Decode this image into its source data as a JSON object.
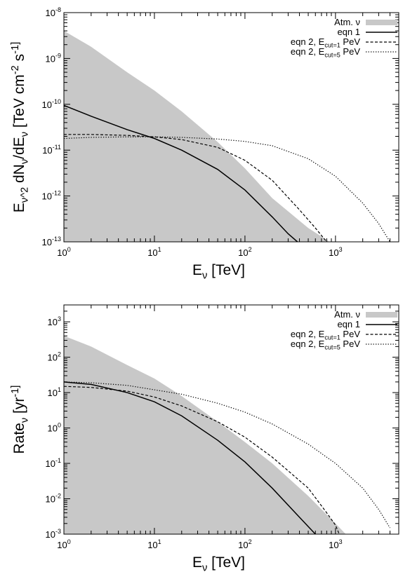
{
  "chart_data": [
    {
      "type": "line",
      "xscale": "log",
      "yscale": "log",
      "xlim": [
        1,
        5000
      ],
      "ylim": [
        1e-13,
        1e-08
      ],
      "xlabel": "E_ν [TeV]",
      "ylabel": "E_ν^2 dN_ν/dE_ν [TeV cm^-2 s^-1]",
      "x_ticks": [
        1,
        10,
        100,
        1000
      ],
      "x_tick_labels": [
        [
          "10",
          "0"
        ],
        [
          "10",
          "1"
        ],
        [
          "10",
          "2"
        ],
        [
          "10",
          "3"
        ]
      ],
      "y_ticks": [
        1e-13,
        1e-12,
        1e-11,
        1e-10,
        1e-09,
        1e-08
      ],
      "y_tick_labels": [
        [
          "10",
          "-13"
        ],
        [
          "10",
          "-12"
        ],
        [
          "10",
          "-11"
        ],
        [
          "10",
          "-10"
        ],
        [
          "10",
          "-9"
        ],
        [
          "10",
          "-8"
        ]
      ],
      "legend_position": "top-right",
      "series": [
        {
          "name": "Atm. ν",
          "style": "filled",
          "color": "#c8c8c8",
          "x": [
            1,
            2,
            5,
            10,
            20,
            50,
            100,
            200,
            500,
            800,
            850
          ],
          "y": [
            4e-09,
            1.8e-09,
            5e-10,
            2e-10,
            7e-11,
            1.5e-11,
            4e-12,
            9e-13,
            2e-13,
            1.1e-13,
            1e-13
          ]
        },
        {
          "name": "eqn 1",
          "style": "solid",
          "x": [
            1,
            2,
            5,
            10,
            20,
            50,
            100,
            200,
            300,
            380
          ],
          "y": [
            9.5e-11,
            5.5e-11,
            2.8e-11,
            1.8e-11,
            1e-11,
            3.8e-12,
            1.35e-12,
            3.5e-13,
            1.5e-13,
            1e-13
          ]
        },
        {
          "name": "eqn 2, E_cut=1 PeV",
          "style": "dashed",
          "x": [
            1,
            2,
            5,
            10,
            20,
            50,
            100,
            200,
            400,
            600,
            800
          ],
          "y": [
            2.2e-11,
            2.2e-11,
            2.1e-11,
            1.95e-11,
            1.7e-11,
            1.15e-11,
            6e-12,
            2.2e-12,
            5e-13,
            2e-13,
            1e-13
          ]
        },
        {
          "name": "eqn 2, E_cut=5 PeV",
          "style": "dotted",
          "x": [
            1,
            2,
            5,
            10,
            20,
            50,
            100,
            200,
            500,
            1000,
            2000,
            3000,
            4000
          ],
          "y": [
            1.8e-11,
            1.9e-11,
            1.95e-11,
            1.95e-11,
            1.9e-11,
            1.75e-11,
            1.55e-11,
            1.25e-11,
            6.5e-12,
            2.7e-12,
            7e-13,
            2.5e-13,
            1e-13
          ]
        }
      ]
    },
    {
      "type": "line",
      "xscale": "log",
      "yscale": "log",
      "xlim": [
        1,
        5000
      ],
      "ylim": [
        0.001,
        3000
      ],
      "xlabel": "E_ν [TeV]",
      "ylabel": "Rate_ν [yr^-1]",
      "x_ticks": [
        1,
        10,
        100,
        1000
      ],
      "x_tick_labels": [
        [
          "10",
          "0"
        ],
        [
          "10",
          "1"
        ],
        [
          "10",
          "2"
        ],
        [
          "10",
          "3"
        ]
      ],
      "y_ticks": [
        0.001,
        0.01,
        0.1,
        1,
        10,
        100,
        1000
      ],
      "y_tick_labels": [
        [
          "10",
          "-3"
        ],
        [
          "10",
          "-2"
        ],
        [
          "10",
          "-1"
        ],
        [
          "10",
          "0"
        ],
        [
          "10",
          "1"
        ],
        [
          "10",
          "2"
        ],
        [
          "10",
          "3"
        ]
      ],
      "legend_position": "top-right",
      "series": [
        {
          "name": "Atm. ν",
          "style": "filled",
          "color": "#c8c8c8",
          "x": [
            1,
            2,
            5,
            10,
            20,
            50,
            100,
            200,
            500,
            1000,
            1300
          ],
          "y": [
            400,
            200,
            60,
            25,
            8,
            1.5,
            0.4,
            0.1,
            0.012,
            0.002,
            0.001
          ]
        },
        {
          "name": "eqn 1",
          "style": "solid",
          "x": [
            1,
            2,
            5,
            10,
            20,
            50,
            100,
            200,
            400,
            600
          ],
          "y": [
            20,
            17,
            10,
            5.5,
            2.2,
            0.45,
            0.11,
            0.02,
            0.003,
            0.001
          ]
        },
        {
          "name": "eqn 2, E_cut=1 PeV",
          "style": "dashed",
          "x": [
            1,
            2,
            5,
            10,
            20,
            50,
            100,
            200,
            500,
            800,
            1000,
            1100
          ],
          "y": [
            15,
            14,
            11,
            7.5,
            4.2,
            1.5,
            0.55,
            0.15,
            0.02,
            0.004,
            0.0018,
            0.001
          ]
        },
        {
          "name": "eqn 2, E_cut=5 PeV",
          "style": "dotted",
          "x": [
            1,
            2,
            5,
            10,
            20,
            50,
            100,
            200,
            500,
            1000,
            2000,
            3000,
            4000
          ],
          "y": [
            20,
            19,
            16,
            12,
            9,
            5,
            2.8,
            1.3,
            0.35,
            0.1,
            0.02,
            0.005,
            0.0015
          ]
        }
      ]
    }
  ]
}
